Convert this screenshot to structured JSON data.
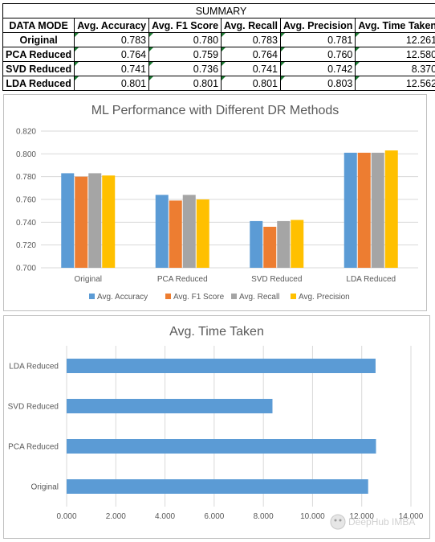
{
  "summary": {
    "title": "SUMMARY",
    "columns": [
      "DATA MODE",
      "Avg. Accuracy",
      "Avg. F1 Score",
      "Avg. Recall",
      "Avg. Precision",
      "Avg. Time Taken"
    ],
    "rows": [
      {
        "mode": "Original",
        "values": [
          "0.783",
          "0.780",
          "0.783",
          "0.781",
          "12.261"
        ]
      },
      {
        "mode": "PCA Reduced",
        "values": [
          "0.764",
          "0.759",
          "0.764",
          "0.760",
          "12.580"
        ]
      },
      {
        "mode": "SVD Reduced",
        "values": [
          "0.741",
          "0.736",
          "0.741",
          "0.742",
          "8.370"
        ]
      },
      {
        "mode": "LDA Reduced",
        "values": [
          "0.801",
          "0.801",
          "0.801",
          "0.803",
          "12.562"
        ]
      }
    ]
  },
  "chart_data": [
    {
      "type": "bar",
      "title": "ML Performance with Different DR  Methods",
      "categories": [
        "Original",
        "PCA Reduced",
        "SVD Reduced",
        "LDA Reduced"
      ],
      "series": [
        {
          "name": "Avg. Accuracy",
          "values": [
            0.783,
            0.764,
            0.741,
            0.801
          ],
          "color": "#5b9bd5"
        },
        {
          "name": "Avg. F1 Score",
          "values": [
            0.78,
            0.759,
            0.736,
            0.801
          ],
          "color": "#ed7d31"
        },
        {
          "name": "Avg. Recall",
          "values": [
            0.783,
            0.764,
            0.741,
            0.801
          ],
          "color": "#a5a5a5"
        },
        {
          "name": "Avg. Precision",
          "values": [
            0.781,
            0.76,
            0.742,
            0.803
          ],
          "color": "#ffc000"
        }
      ],
      "ylim": [
        0.7,
        0.82
      ],
      "yticks": [
        "0.700",
        "0.720",
        "0.740",
        "0.760",
        "0.780",
        "0.800",
        "0.820"
      ],
      "grid": true,
      "legend": "bottom"
    },
    {
      "type": "bar",
      "orientation": "horizontal",
      "title": "Avg. Time Taken",
      "categories": [
        "Original",
        "PCA Reduced",
        "SVD Reduced",
        "LDA Reduced"
      ],
      "values": [
        12.261,
        12.58,
        8.37,
        12.562
      ],
      "color": "#5b9bd5",
      "xlim": [
        0,
        14
      ],
      "xticks": [
        "0.000",
        "2.000",
        "4.000",
        "6.000",
        "8.000",
        "10.000",
        "12.000",
        "14.000"
      ],
      "grid": true
    }
  ],
  "watermark": "DeepHub IMBA"
}
